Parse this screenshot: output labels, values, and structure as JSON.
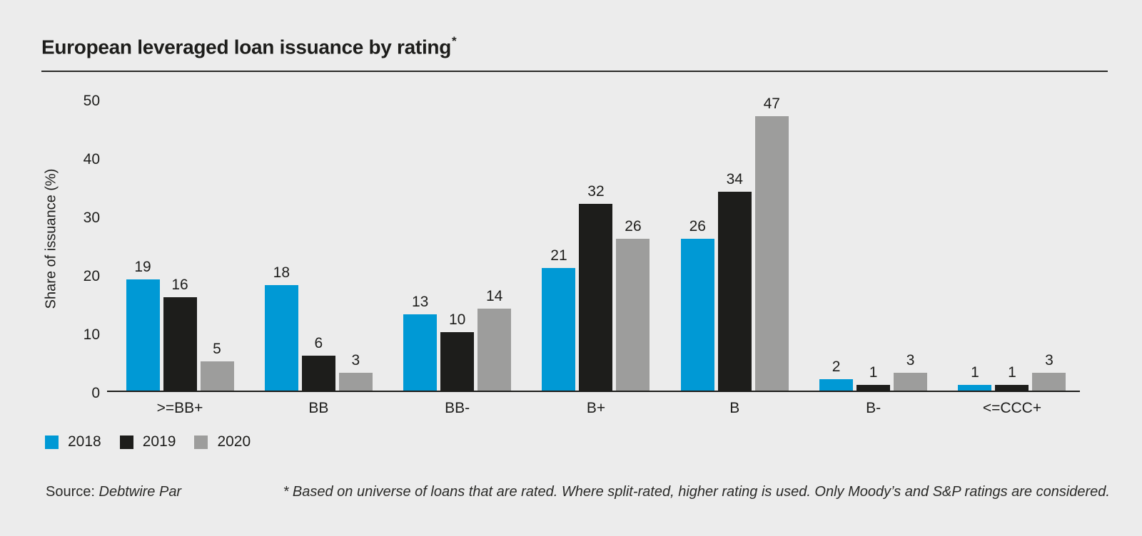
{
  "title": {
    "text": "European leveraged loan issuance by rating",
    "footnote_marker": "*"
  },
  "chart_data": {
    "type": "bar",
    "categories": [
      ">=BB+",
      "BB",
      "BB-",
      "B+",
      "B",
      "B-",
      "<=CCC+"
    ],
    "series": [
      {
        "name": "2018",
        "color": "#0099d5",
        "values": [
          19,
          18,
          13,
          21,
          26,
          2,
          1
        ]
      },
      {
        "name": "2019",
        "color": "#1d1d1b",
        "values": [
          16,
          6,
          10,
          32,
          34,
          1,
          1
        ]
      },
      {
        "name": "2020",
        "color": "#9d9d9c",
        "values": [
          5,
          3,
          14,
          26,
          47,
          3,
          3
        ]
      }
    ],
    "title": "European leveraged loan issuance by rating*",
    "xlabel": "",
    "ylabel": "Share of issuance (%)",
    "ylim": [
      0,
      50
    ],
    "yticks": [
      0,
      10,
      20,
      30,
      40,
      50
    ],
    "grid": false,
    "value_labels": true,
    "legend_position": "bottom-left"
  },
  "footer": {
    "source_label": "Source:",
    "source_value": "Debtwire Par",
    "footnote": "* Based on universe of loans that are rated. Where split-rated, higher rating is used. Only Moody’s and S&P ratings are considered."
  },
  "colors": {
    "background": "#ececec",
    "text": "#1d1d1b",
    "axis": "#1d1d1b"
  }
}
